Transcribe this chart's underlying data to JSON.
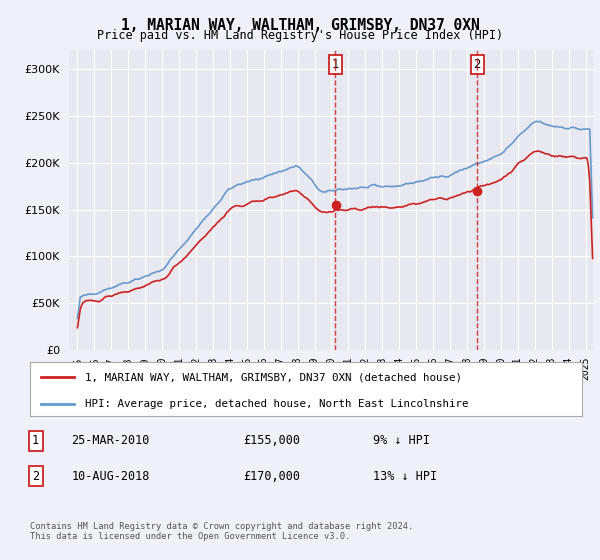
{
  "title": "1, MARIAN WAY, WALTHAM, GRIMSBY, DN37 0XN",
  "subtitle": "Price paid vs. HM Land Registry's House Price Index (HPI)",
  "bg_color": "#f0f0f8",
  "plot_bg_color": "#e8e8f0",
  "hpi_color": "#6699cc",
  "price_color": "#cc2222",
  "vline1_x": 2010.23,
  "vline2_x": 2018.61,
  "vline_color": "#cc2222",
  "legend_line1": "1, MARIAN WAY, WALTHAM, GRIMSBY, DN37 0XN (detached house)",
  "legend_line2": "HPI: Average price, detached house, North East Lincolnshire",
  "footer": "Contains HM Land Registry data © Crown copyright and database right 2024.\nThis data is licensed under the Open Government Licence v3.0.",
  "ylim": [
    0,
    320000
  ],
  "yticks": [
    0,
    50000,
    100000,
    150000,
    200000,
    250000,
    300000
  ],
  "xlim_start": 1994.5,
  "xlim_end": 2025.5,
  "sale1_year": 2010.21,
  "sale1_price": 155000,
  "sale2_year": 2018.58,
  "sale2_price": 170000
}
